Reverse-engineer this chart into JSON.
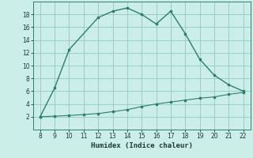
{
  "title": "",
  "xlabel": "Humidex (Indice chaleur)",
  "background_color": "#cceee8",
  "line_color": "#2d7d6e",
  "grid_color": "#99cccc",
  "x_upper": [
    8,
    9,
    10,
    12,
    13,
    14,
    15,
    16,
    17,
    18,
    19,
    20,
    21,
    22
  ],
  "y_upper": [
    2,
    6.5,
    12.5,
    17.5,
    18.5,
    19.0,
    18.0,
    16.5,
    18.5,
    15.0,
    11.0,
    8.5,
    7.0,
    6.0
  ],
  "x_lower": [
    8,
    9,
    10,
    11,
    12,
    13,
    14,
    15,
    16,
    17,
    18,
    19,
    20,
    21,
    22
  ],
  "y_lower": [
    2.0,
    2.1,
    2.2,
    2.35,
    2.5,
    2.8,
    3.1,
    3.6,
    4.0,
    4.3,
    4.6,
    4.9,
    5.1,
    5.5,
    5.8
  ],
  "xlim": [
    7.5,
    22.5
  ],
  "ylim": [
    0,
    20
  ],
  "xticks": [
    8,
    9,
    10,
    11,
    12,
    13,
    14,
    15,
    16,
    17,
    18,
    19,
    20,
    21,
    22
  ],
  "yticks": [
    2,
    4,
    6,
    8,
    10,
    12,
    14,
    16,
    18
  ]
}
